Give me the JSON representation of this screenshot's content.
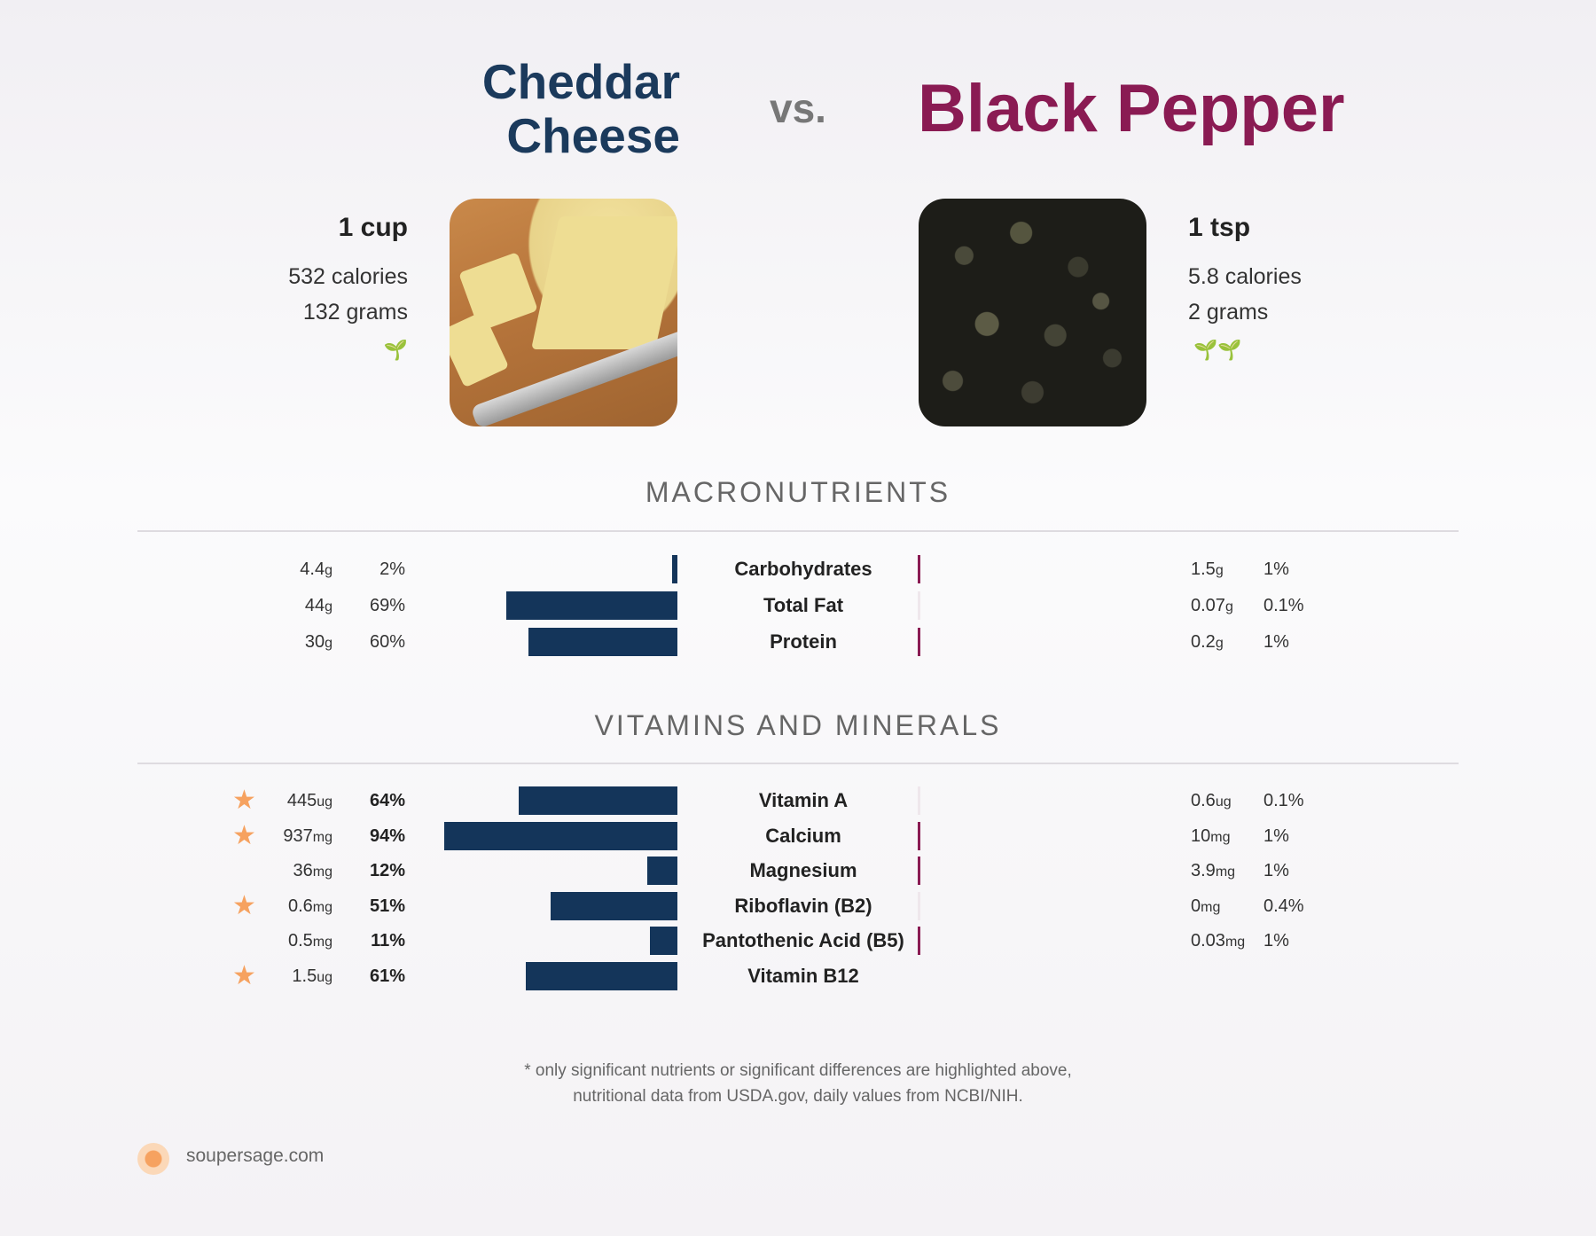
{
  "header": {
    "left_food_line1": "Cheddar",
    "left_food_line2": "Cheese",
    "vs": "vs.",
    "right_food": "Black Pepper"
  },
  "left_food": {
    "serving": "1 cup",
    "calories": "532 calories",
    "grams": "132 grams",
    "leaf_icons": "🌱",
    "image_icon": "cheddar-cheese-photo"
  },
  "right_food": {
    "serving": "1 tsp",
    "calories": "5.8 calories",
    "grams": "2 grams",
    "leaf_icons": "🌱🌱",
    "image_icon": "black-pepper-photo"
  },
  "sections": {
    "macros": "MACRONUTRIENTS",
    "vitamins": "VITAMINS AND MINERALS"
  },
  "colors": {
    "left_series": "#14355a",
    "right_series": "#8a1b53",
    "star": "#f6a260"
  },
  "chart_data": [
    {
      "type": "bar",
      "title": "MACRONUTRIENTS",
      "categories": [
        "Carbohydrates",
        "Total Fat",
        "Protein"
      ],
      "series": [
        {
          "name": "Cheddar Cheese",
          "amounts": [
            "4.4",
            "44",
            "30"
          ],
          "units": [
            "g",
            "g",
            "g"
          ],
          "pct_labels": [
            "2%",
            "69%",
            "60%"
          ],
          "values": [
            2,
            69,
            60
          ]
        },
        {
          "name": "Black Pepper",
          "amounts": [
            "1.5",
            "0.07",
            "0.2"
          ],
          "units": [
            "g",
            "g",
            "g"
          ],
          "pct_labels": [
            "1%",
            "0.1%",
            "1%"
          ],
          "values": [
            1,
            0.1,
            1
          ]
        }
      ]
    },
    {
      "type": "bar",
      "title": "VITAMINS AND MINERALS",
      "categories": [
        "Vitamin A",
        "Calcium",
        "Magnesium",
        "Riboflavin (B2)",
        "Pantothenic Acid (B5)",
        "Vitamin B12"
      ],
      "series": [
        {
          "name": "Cheddar Cheese",
          "amounts": [
            "445",
            "937",
            "36",
            "0.6",
            "0.5",
            "1.5"
          ],
          "units": [
            "ug",
            "mg",
            "mg",
            "mg",
            "mg",
            "ug"
          ],
          "pct_labels": [
            "64%",
            "94%",
            "12%",
            "51%",
            "11%",
            "61%"
          ],
          "values": [
            64,
            94,
            12,
            51,
            11,
            61
          ],
          "starred": [
            true,
            true,
            false,
            true,
            false,
            true
          ]
        },
        {
          "name": "Black Pepper",
          "amounts": [
            "0.6",
            "10",
            "3.9",
            "0",
            "0.03",
            ""
          ],
          "units": [
            "ug",
            "mg",
            "mg",
            "mg",
            "mg",
            ""
          ],
          "pct_labels": [
            "0.1%",
            "1%",
            "1%",
            "0.4%",
            "1%",
            ""
          ],
          "values": [
            0.1,
            1,
            1,
            0.4,
            1,
            null
          ]
        }
      ]
    }
  ],
  "footnote": {
    "line1": "* only significant nutrients or significant differences are highlighted above,",
    "line2": "nutritional data from USDA.gov, daily values from NCBI/NIH."
  },
  "brand": {
    "text": "soupersage.com",
    "icon": "soupersage-logo-icon"
  }
}
